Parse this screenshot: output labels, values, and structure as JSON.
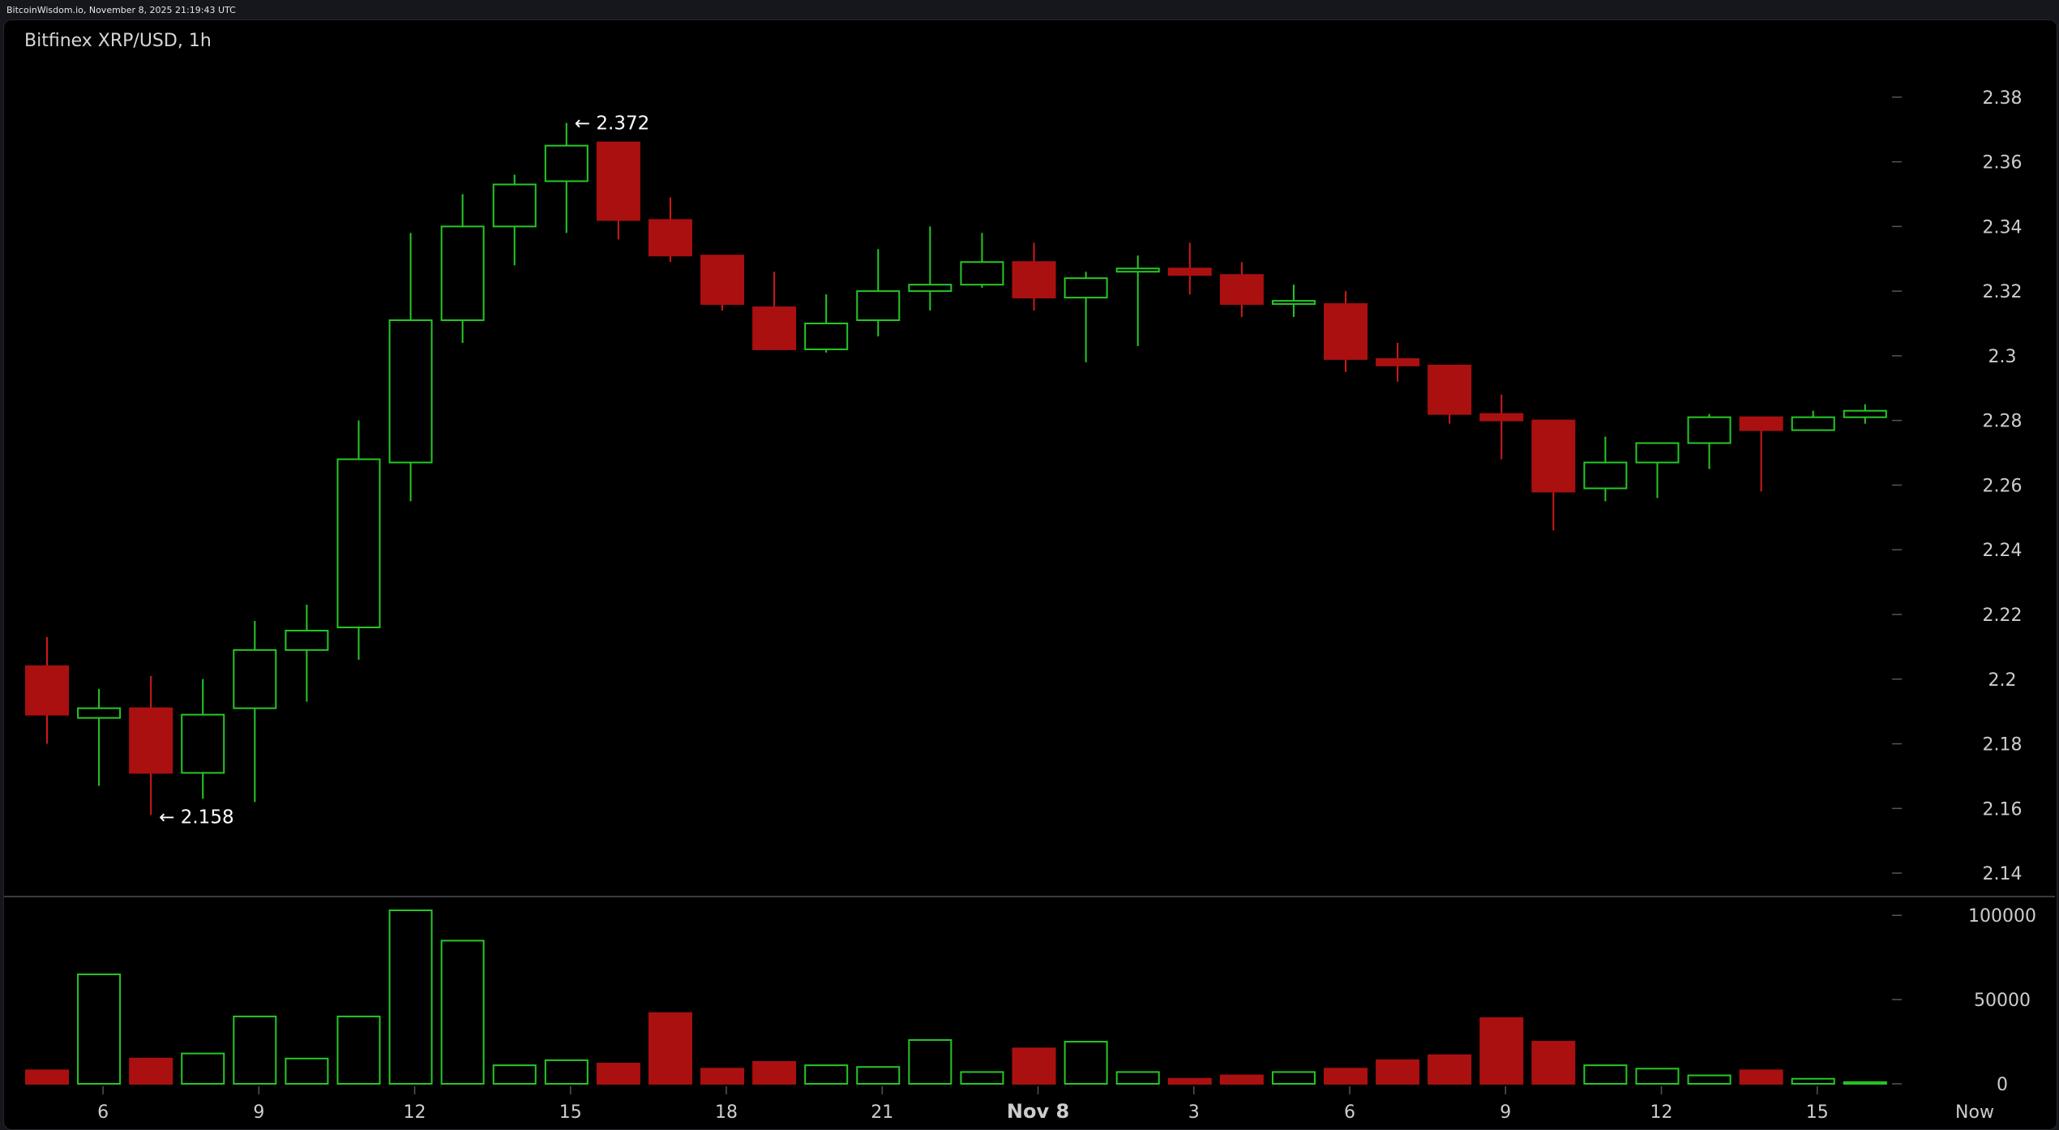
{
  "header": {
    "stamp": "BitcoinWisdom.io, November 8, 2025 21:19:43 UTC"
  },
  "chart_data": {
    "type": "candlestick",
    "title": "Bitfinex XRP/USD, 1h",
    "x_ticks": [
      "6",
      "9",
      "12",
      "15",
      "18",
      "21",
      "Nov 8",
      "3",
      "6",
      "9",
      "12",
      "15",
      "Now"
    ],
    "price_ticks": [
      "2.38",
      "2.36",
      "2.34",
      "2.32",
      "2.3",
      "2.28",
      "2.26",
      "2.24",
      "2.22",
      "2.2",
      "2.18",
      "2.16",
      "2.14"
    ],
    "price_range": [
      2.133,
      2.395
    ],
    "volume_ticks": [
      "100000",
      "50000",
      "0"
    ],
    "volume_range": [
      0,
      103000
    ],
    "annotations": [
      {
        "label": "← 2.372",
        "price": 2.372
      },
      {
        "label": "← 2.158",
        "price": 2.158
      }
    ],
    "colors": {
      "up": "#26c826",
      "down": "#aa1010",
      "down_wick": "#d01a1a",
      "axis_text": "#cccccc"
    },
    "candles": [
      {
        "open": 2.204,
        "high": 2.213,
        "low": 2.18,
        "close": 2.189,
        "volume": 8000
      },
      {
        "open": 2.188,
        "high": 2.197,
        "low": 2.167,
        "close": 2.191,
        "volume": 65000
      },
      {
        "open": 2.191,
        "high": 2.201,
        "low": 2.158,
        "close": 2.171,
        "volume": 15000
      },
      {
        "open": 2.171,
        "high": 2.2,
        "low": 2.163,
        "close": 2.189,
        "volume": 18000
      },
      {
        "open": 2.191,
        "high": 2.218,
        "low": 2.162,
        "close": 2.209,
        "volume": 40000
      },
      {
        "open": 2.209,
        "high": 2.223,
        "low": 2.193,
        "close": 2.215,
        "volume": 15000
      },
      {
        "open": 2.216,
        "high": 2.28,
        "low": 2.206,
        "close": 2.268,
        "volume": 40000
      },
      {
        "open": 2.267,
        "high": 2.338,
        "low": 2.255,
        "close": 2.311,
        "volume": 103000
      },
      {
        "open": 2.311,
        "high": 2.35,
        "low": 2.304,
        "close": 2.34,
        "volume": 85000
      },
      {
        "open": 2.34,
        "high": 2.356,
        "low": 2.328,
        "close": 2.353,
        "volume": 11000
      },
      {
        "open": 2.354,
        "high": 2.372,
        "low": 2.338,
        "close": 2.365,
        "volume": 14000
      },
      {
        "open": 2.366,
        "high": 2.366,
        "low": 2.336,
        "close": 2.342,
        "volume": 12000
      },
      {
        "open": 2.342,
        "high": 2.349,
        "low": 2.329,
        "close": 2.331,
        "volume": 42000
      },
      {
        "open": 2.331,
        "high": 2.331,
        "low": 2.314,
        "close": 2.316,
        "volume": 9000
      },
      {
        "open": 2.315,
        "high": 2.326,
        "low": 2.302,
        "close": 2.302,
        "volume": 13000
      },
      {
        "open": 2.302,
        "high": 2.319,
        "low": 2.301,
        "close": 2.31,
        "volume": 11000
      },
      {
        "open": 2.311,
        "high": 2.333,
        "low": 2.306,
        "close": 2.32,
        "volume": 10000
      },
      {
        "open": 2.32,
        "high": 2.34,
        "low": 2.314,
        "close": 2.322,
        "volume": 26000
      },
      {
        "open": 2.322,
        "high": 2.338,
        "low": 2.321,
        "close": 2.329,
        "volume": 7000
      },
      {
        "open": 2.329,
        "high": 2.335,
        "low": 2.314,
        "close": 2.318,
        "volume": 21000
      },
      {
        "open": 2.318,
        "high": 2.326,
        "low": 2.298,
        "close": 2.324,
        "volume": 25000
      },
      {
        "open": 2.326,
        "high": 2.331,
        "low": 2.303,
        "close": 2.327,
        "volume": 7000
      },
      {
        "open": 2.327,
        "high": 2.335,
        "low": 2.319,
        "close": 2.325,
        "volume": 3000
      },
      {
        "open": 2.325,
        "high": 2.329,
        "low": 2.312,
        "close": 2.316,
        "volume": 5000
      },
      {
        "open": 2.316,
        "high": 2.322,
        "low": 2.312,
        "close": 2.317,
        "volume": 7000
      },
      {
        "open": 2.316,
        "high": 2.32,
        "low": 2.295,
        "close": 2.299,
        "volume": 9000
      },
      {
        "open": 2.299,
        "high": 2.304,
        "low": 2.292,
        "close": 2.297,
        "volume": 14000
      },
      {
        "open": 2.297,
        "high": 2.297,
        "low": 2.279,
        "close": 2.282,
        "volume": 17000
      },
      {
        "open": 2.282,
        "high": 2.288,
        "low": 2.268,
        "close": 2.28,
        "volume": 39000
      },
      {
        "open": 2.28,
        "high": 2.28,
        "low": 2.246,
        "close": 2.258,
        "volume": 25000
      },
      {
        "open": 2.259,
        "high": 2.275,
        "low": 2.255,
        "close": 2.267,
        "volume": 11000
      },
      {
        "open": 2.267,
        "high": 2.273,
        "low": 2.256,
        "close": 2.273,
        "volume": 9000
      },
      {
        "open": 2.273,
        "high": 2.282,
        "low": 2.265,
        "close": 2.281,
        "volume": 5000
      },
      {
        "open": 2.281,
        "high": 2.281,
        "low": 2.258,
        "close": 2.277,
        "volume": 8000
      },
      {
        "open": 2.277,
        "high": 2.283,
        "low": 2.277,
        "close": 2.281,
        "volume": 3000
      },
      {
        "open": 2.281,
        "high": 2.285,
        "low": 2.279,
        "close": 2.283,
        "volume": 1000
      }
    ]
  }
}
